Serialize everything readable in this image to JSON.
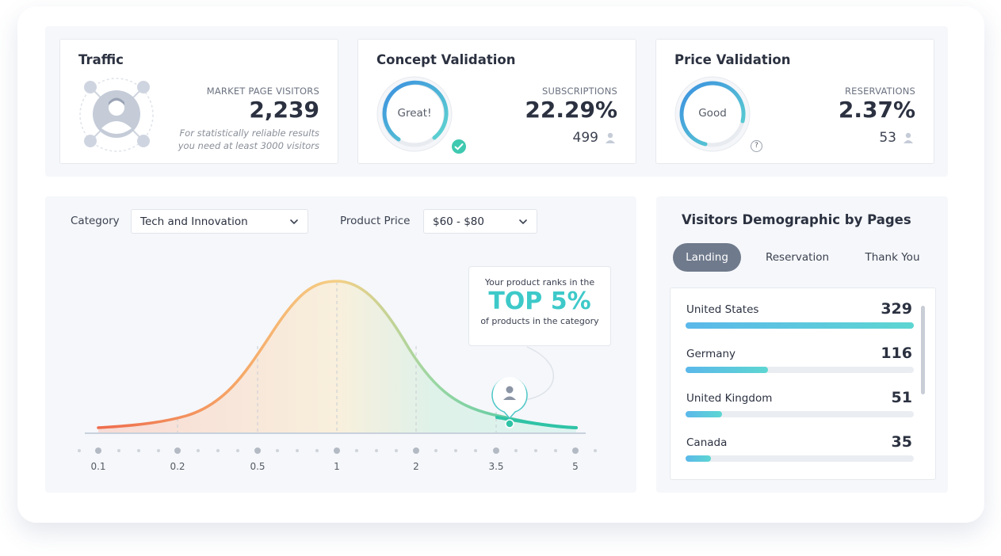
{
  "traffic": {
    "title": "Traffic",
    "metric_label": "MARKET PAGE VISITORS",
    "metric_value": "2,239",
    "hint_line1": "For statistically reliable results",
    "hint_line2": "you need at least 3000 visitors",
    "avatar_icon": "user-network-icon"
  },
  "concept": {
    "title": "Concept Validation",
    "gauge_label": "Great!",
    "metric_label": "SUBSCRIPTIONS",
    "metric_value": "22.29%",
    "count": "499",
    "gauge_fill": 0.85,
    "badge_icon": "check-badge-icon"
  },
  "price": {
    "title": "Price Validation",
    "gauge_label": "Good",
    "metric_label": "RESERVATIONS",
    "metric_value": "2.37%",
    "count": "53",
    "gauge_fill": 0.65,
    "help_label": "?"
  },
  "filters": {
    "category_label": "Category",
    "category_value": "Tech and Innovation",
    "price_label": "Product Price",
    "price_value": "$60 - $80"
  },
  "rank": {
    "line1": "Your product ranks in the",
    "headline": "TOP 5%",
    "line2": "of products in the category"
  },
  "chart_data": {
    "type": "area",
    "x": [
      "0.1",
      "0.2",
      "0.5",
      "1",
      "2",
      "3.5",
      "5"
    ],
    "marker_x": "3.5",
    "colors": [
      "#ee6a4b",
      "#f6b26b",
      "#f5d98a",
      "#9bd6a2",
      "#3ec9b0"
    ]
  },
  "demographic": {
    "title": "Visitors Demographic by Pages",
    "tabs": [
      "Landing",
      "Reservation",
      "Thank You"
    ],
    "active_tab": 0,
    "rows": [
      {
        "name": "United States",
        "value": "329",
        "share": 1.0
      },
      {
        "name": "Germany",
        "value": "116",
        "share": 0.36
      },
      {
        "name": "United Kingdom",
        "value": "51",
        "share": 0.16
      },
      {
        "name": "Canada",
        "value": "35",
        "share": 0.11
      }
    ]
  },
  "colors": {
    "accent": "#3ec9c9",
    "gauge_blue": "#3b8fe0",
    "text": "#2b3140"
  }
}
